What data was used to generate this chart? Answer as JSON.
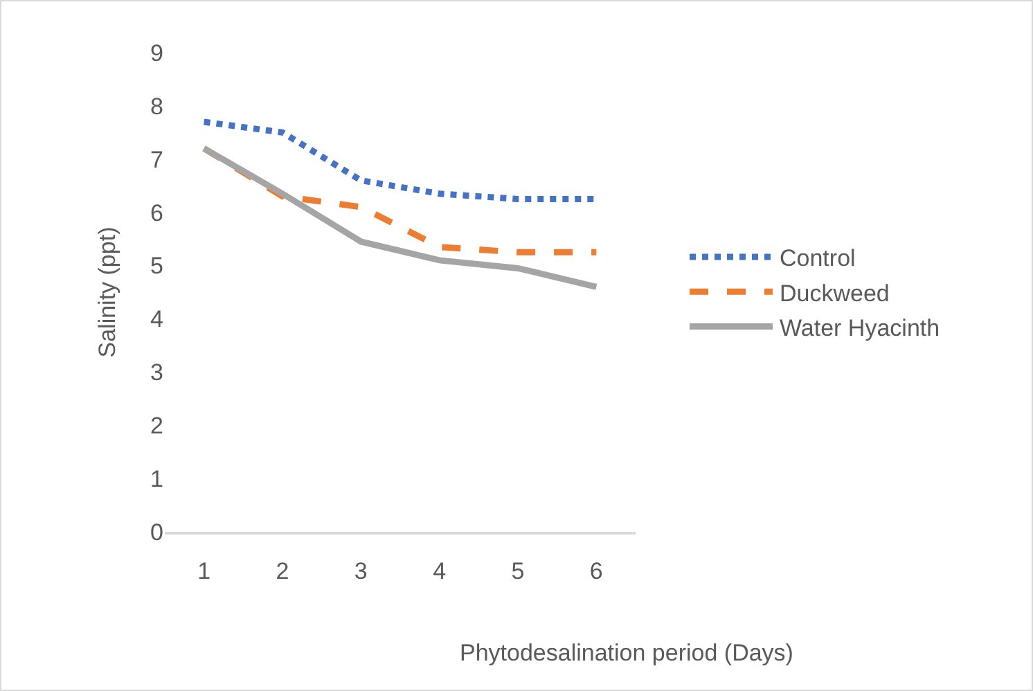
{
  "chart_data": {
    "type": "line",
    "xlabel": "Phytodesalination period (Days)",
    "ylabel": "Salinity (ppt)",
    "categories": [
      "1",
      "2",
      "3",
      "4",
      "5",
      "6"
    ],
    "series": [
      {
        "name": "Control",
        "color": "#4472c4",
        "line_style": "dotted",
        "values": [
          7.7,
          7.5,
          6.6,
          6.35,
          6.25,
          6.25
        ]
      },
      {
        "name": "Duckweed",
        "color": "#ed7d31",
        "line_style": "dashed",
        "values": [
          7.2,
          6.3,
          6.1,
          5.35,
          5.25,
          5.25
        ]
      },
      {
        "name": "Water Hyacinth",
        "color": "#a5a5a5",
        "line_style": "solid",
        "values": [
          7.2,
          6.35,
          5.45,
          5.1,
          4.95,
          4.6
        ]
      }
    ],
    "ylim": [
      0,
      9
    ],
    "yticks": [
      0,
      1,
      2,
      3,
      4,
      5,
      6,
      7,
      8,
      9
    ],
    "grid": false,
    "legend": "right",
    "marker": "none"
  }
}
